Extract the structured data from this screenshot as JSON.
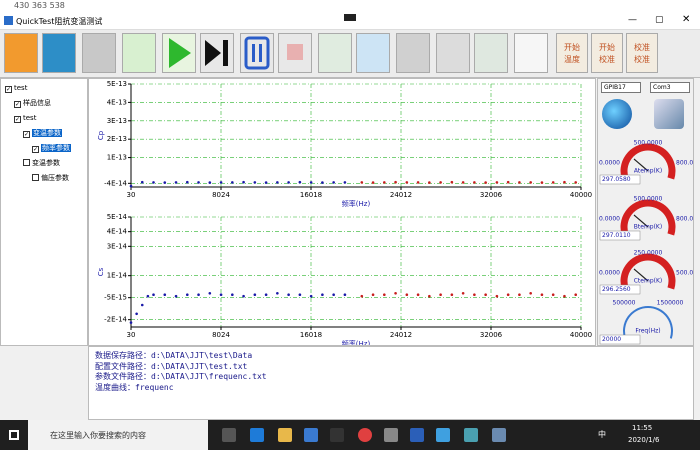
{
  "top_bar": {
    "id": "430 363 538"
  },
  "window": {
    "title": "QuickTest阻抗变温测试"
  },
  "toolbar": {
    "buttons": [
      [
        "开始",
        "温度"
      ],
      [
        "开始",
        "校准"
      ],
      [
        "校准",
        "校准"
      ]
    ]
  },
  "tree": {
    "items": [
      {
        "label": "test",
        "level": 0,
        "checked": true,
        "selected": false
      },
      {
        "label": "样品信息",
        "level": 1,
        "checked": true,
        "selected": false
      },
      {
        "label": "test",
        "level": 1,
        "checked": true,
        "selected": false
      },
      {
        "label": "变温参数",
        "level": 2,
        "checked": true,
        "selected": true
      },
      {
        "label": "频率参数",
        "level": 3,
        "checked": true,
        "selected": true
      },
      {
        "label": "变温参数",
        "level": 2,
        "checked": false,
        "selected": false
      },
      {
        "label": "偏压参数",
        "level": 3,
        "checked": false,
        "selected": false
      }
    ]
  },
  "chart_data": [
    {
      "type": "scatter",
      "y_label": "Cp",
      "x_label": "频率(Hz)",
      "grid": true,
      "xlim": [
        30,
        40000
      ],
      "xticks": [
        30,
        8024,
        16018,
        24012,
        32006,
        40000
      ],
      "ylim": [
        -6e-14,
        5e-13
      ],
      "yticks": [
        {
          "value": 5e-13,
          "label": "5E-13"
        },
        {
          "value": 4e-13,
          "label": "4E-13"
        },
        {
          "value": 3e-13,
          "label": "3E-13"
        },
        {
          "value": 2e-13,
          "label": "2E-13"
        },
        {
          "value": 1e-13,
          "label": "1E-13"
        },
        {
          "value": -4e-14,
          "label": "-4E-14"
        }
      ],
      "series": [
        {
          "color": "#1a1aa8",
          "x": [
            30,
            1030,
            2030,
            3030,
            4030,
            5030,
            6030,
            7030,
            8030,
            9030,
            10030,
            11030,
            12030,
            13030,
            14030,
            15030,
            16030,
            17030,
            18030,
            19030
          ],
          "values": [
            -5.5e-14,
            -3.4e-14,
            -3.5e-14,
            -3.6e-14,
            -3.5e-14,
            -3.4e-14,
            -3.5e-14,
            -3.6e-14,
            -3.5e-14,
            -3.5e-14,
            -3.4e-14,
            -3.5e-14,
            -3.6e-14,
            -3.5e-14,
            -3.5e-14,
            -3.4e-14,
            -3.5e-14,
            -3.6e-14,
            -3.5e-14,
            -3.5e-14
          ]
        },
        {
          "color": "#c81e1e",
          "x": [
            20530,
            21530,
            22530,
            23530,
            24530,
            25530,
            26530,
            27530,
            28530,
            29530,
            30530,
            31530,
            32530,
            33530,
            34530,
            35530,
            36530,
            37530,
            38530,
            39530
          ],
          "values": [
            -3.5e-14,
            -3.6e-14,
            -3.5e-14,
            -3.4e-14,
            -3.5e-14,
            -3.5e-14,
            -3.6e-14,
            -3.5e-14,
            -3.4e-14,
            -3.5e-14,
            -3.5e-14,
            -3.6e-14,
            -3.5e-14,
            -3.4e-14,
            -3.5e-14,
            -3.5e-14,
            -3.6e-14,
            -3.5e-14,
            -3.4e-14,
            -3.5e-14
          ]
        }
      ]
    },
    {
      "type": "scatter",
      "y_label": "Cs",
      "x_label": "频率(Hz)",
      "grid": true,
      "xlim": [
        30,
        40000
      ],
      "xticks": [
        30,
        8024,
        16018,
        24012,
        32006,
        40000
      ],
      "ylim": [
        -2.5e-14,
        5e-14
      ],
      "yticks": [
        {
          "value": 5e-14,
          "label": "5E-14"
        },
        {
          "value": 4e-14,
          "label": "4E-14"
        },
        {
          "value": 3e-14,
          "label": "3E-14"
        },
        {
          "value": 1e-14,
          "label": "1E-14"
        },
        {
          "value": -5e-15,
          "label": "-5E-15"
        },
        {
          "value": -2e-14,
          "label": "-2E-14"
        }
      ],
      "series": [
        {
          "color": "#1a1aa8",
          "x": [
            30,
            530,
            1030,
            1530,
            2030,
            3030,
            4030,
            5030,
            6030,
            7030,
            8030,
            9030,
            10030,
            11030,
            12030,
            13030,
            14030,
            15030,
            16030,
            17030,
            18030,
            19030
          ],
          "values": [
            -2.2e-14,
            -1.6e-14,
            -1e-14,
            -4e-15,
            -3e-15,
            -3e-15,
            -4e-15,
            -3e-15,
            -3e-15,
            -2e-15,
            -3e-15,
            -3e-15,
            -4e-15,
            -3e-15,
            -3e-15,
            -2e-15,
            -3e-15,
            -3e-15,
            -4e-15,
            -3e-15,
            -3e-15,
            -3e-15
          ]
        },
        {
          "color": "#c81e1e",
          "x": [
            20530,
            21530,
            22530,
            23530,
            24530,
            25530,
            26530,
            27530,
            28530,
            29530,
            30530,
            31530,
            32530,
            33530,
            34530,
            35530,
            36530,
            37530,
            38530,
            39530
          ],
          "values": [
            -4e-15,
            -3e-15,
            -3e-15,
            -2e-15,
            -3e-15,
            -3e-15,
            -4e-15,
            -3e-15,
            -3e-15,
            -2e-15,
            -3e-15,
            -3e-15,
            -4e-15,
            -3e-15,
            -3e-15,
            -2e-15,
            -3e-15,
            -3e-15,
            -4e-15,
            -3e-15
          ]
        }
      ]
    }
  ],
  "instruments": {
    "gpib": "GPIB17",
    "com": "Com3"
  },
  "gauges": [
    {
      "labels": [
        "0.0000",
        "500.0000",
        "800.0000"
      ],
      "name": "Atemp(K)",
      "reading": "297.0580"
    },
    {
      "labels": [
        "0.0000",
        "500.0000",
        "800.0000"
      ],
      "name": "Btemp(K)",
      "reading": "297.0110"
    },
    {
      "labels": [
        "0.0000",
        "250.0000",
        "500.0000"
      ],
      "name": "Ctemp(K)",
      "reading": "296.2560"
    },
    {
      "labels": [
        "500000",
        "1500000"
      ],
      "name": "Freq(Hz)",
      "reading": "20000"
    }
  ],
  "log": {
    "lines": [
      "数据保存路径：d:\\DATA\\JJT\\test\\Data",
      "配置文件路径：d:\\DATA\\JJT\\test.txt",
      "参数文件路径：d:\\DATA\\JJT\\frequenc.txt",
      "温度曲线：frequenc"
    ]
  },
  "taskbar": {
    "search": "在这里输入你要搜索的内容",
    "ime": "中",
    "time": "11:55",
    "date": "2020/1/6"
  }
}
